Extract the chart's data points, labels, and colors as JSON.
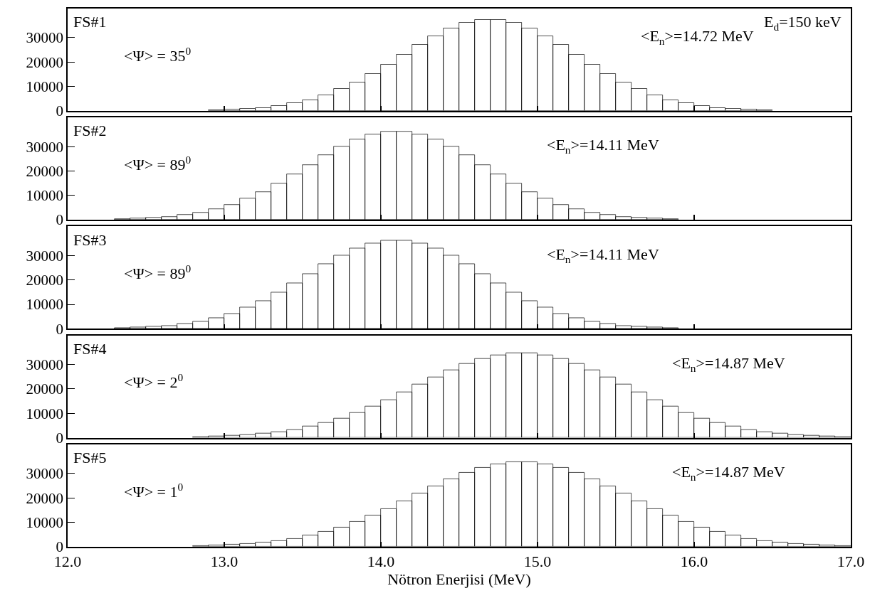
{
  "chart_data": [
    {
      "type": "histogram",
      "color": "#000000",
      "bins": [
        12.9,
        13.0,
        13.1,
        13.2,
        13.3,
        13.4,
        13.5,
        13.6,
        13.7,
        13.8,
        13.9,
        14.0,
        14.1,
        14.2,
        14.3,
        14.4,
        14.5,
        14.6,
        14.7,
        14.8,
        14.9,
        15.0,
        15.1,
        15.2,
        15.3,
        15.4,
        15.5,
        15.6,
        15.7,
        15.8,
        15.9,
        16.0,
        16.1,
        16.2,
        16.3,
        16.4,
        16.5
      ],
      "values": [
        300,
        500,
        800,
        1300,
        2100,
        3100,
        4500,
        6400,
        8900,
        11800,
        15300,
        19100,
        23100,
        27100,
        30700,
        33800,
        36100,
        37300,
        37300,
        36100,
        33800,
        30700,
        27100,
        23100,
        19100,
        15300,
        11800,
        8900,
        6400,
        4500,
        3100,
        2100,
        1300,
        800,
        500,
        300
      ],
      "annotations": [
        "FS#1",
        "<Ψ> = 35$^{0}$",
        "<E$_{n}$>=14.72 MeV",
        "E$_{d}$=150 keV"
      ],
      "xlim": [
        12.0,
        17.0
      ],
      "xticks": [
        {
          "value": 12.0,
          "label": null
        },
        {
          "value": 13.0,
          "label": null
        },
        {
          "value": 14.0,
          "label": null
        },
        {
          "value": 15.0,
          "label": null
        },
        {
          "value": 16.0,
          "label": null
        },
        {
          "value": 17.0,
          "label": null
        }
      ],
      "ylim": [
        0,
        42000
      ],
      "yticks": [
        0,
        10000,
        20000,
        30000
      ],
      "tick_labels": "y"
    },
    {
      "type": "histogram",
      "color": "#000000",
      "bins": [
        12.3,
        12.4,
        12.5,
        12.6,
        12.7,
        12.8,
        12.9,
        13.0,
        13.1,
        13.2,
        13.3,
        13.4,
        13.5,
        13.6,
        13.7,
        13.8,
        13.9,
        14.0,
        14.1,
        14.2,
        14.3,
        14.4,
        14.5,
        14.6,
        14.7,
        14.8,
        14.9,
        15.0,
        15.1,
        15.2,
        15.3,
        15.4,
        15.5,
        15.6,
        15.7,
        15.8,
        15.9
      ],
      "values": [
        300,
        500,
        800,
        1300,
        2000,
        3000,
        4400,
        6200,
        8700,
        11500,
        14900,
        18600,
        22500,
        26400,
        29900,
        32900,
        35100,
        36300,
        36300,
        35100,
        32900,
        29900,
        26400,
        22500,
        18600,
        14900,
        11500,
        8700,
        6200,
        4400,
        3000,
        2000,
        1300,
        800,
        500,
        300
      ],
      "annotations": [
        "FS#2",
        "<Ψ> = 89$^{0}$",
        "<E$_{n}$>=14.11 MeV"
      ],
      "xlim": [
        12.0,
        17.0
      ],
      "xticks": [
        {
          "value": 12.0,
          "label": null
        },
        {
          "value": 13.0,
          "label": null
        },
        {
          "value": 14.0,
          "label": null
        },
        {
          "value": 15.0,
          "label": null
        },
        {
          "value": 16.0,
          "label": null
        },
        {
          "value": 17.0,
          "label": null
        }
      ],
      "ylim": [
        0,
        42000
      ],
      "yticks": [
        0,
        10000,
        20000,
        30000
      ],
      "tick_labels": "y"
    },
    {
      "type": "histogram",
      "color": "#000000",
      "bins": [
        12.3,
        12.4,
        12.5,
        12.6,
        12.7,
        12.8,
        12.9,
        13.0,
        13.1,
        13.2,
        13.3,
        13.4,
        13.5,
        13.6,
        13.7,
        13.8,
        13.9,
        14.0,
        14.1,
        14.2,
        14.3,
        14.4,
        14.5,
        14.6,
        14.7,
        14.8,
        14.9,
        15.0,
        15.1,
        15.2,
        15.3,
        15.4,
        15.5,
        15.6,
        15.7,
        15.8,
        15.9
      ],
      "values": [
        300,
        500,
        800,
        1300,
        2000,
        3000,
        4400,
        6200,
        8700,
        11500,
        14900,
        18600,
        22500,
        26400,
        29900,
        32900,
        35100,
        36300,
        36300,
        35100,
        32900,
        29900,
        26400,
        22500,
        18600,
        14900,
        11500,
        8700,
        6200,
        4400,
        3000,
        2000,
        1300,
        800,
        500,
        300
      ],
      "annotations": [
        "FS#3",
        "<Ψ> = 89$^{0}$",
        "<E$_{n}$>=14.11 MeV"
      ],
      "xlim": [
        12.0,
        17.0
      ],
      "xticks": [
        {
          "value": 12.0,
          "label": null
        },
        {
          "value": 13.0,
          "label": null
        },
        {
          "value": 14.0,
          "label": null
        },
        {
          "value": 15.0,
          "label": null
        },
        {
          "value": 16.0,
          "label": null
        },
        {
          "value": 17.0,
          "label": null
        }
      ],
      "ylim": [
        0,
        42000
      ],
      "yticks": [
        0,
        10000,
        20000,
        30000
      ],
      "tick_labels": "y"
    },
    {
      "type": "histogram",
      "color": "#000000",
      "bins": [
        12.8,
        12.9,
        13.0,
        13.1,
        13.2,
        13.3,
        13.4,
        13.5,
        13.6,
        13.7,
        13.8,
        13.9,
        14.0,
        14.1,
        14.2,
        14.3,
        14.4,
        14.5,
        14.6,
        14.7,
        14.8,
        14.9,
        15.0,
        15.1,
        15.2,
        15.3,
        15.4,
        15.5,
        15.6,
        15.7,
        15.8,
        15.9,
        16.0,
        16.1,
        16.2,
        16.3,
        16.4,
        16.5,
        16.6,
        16.7,
        16.8,
        16.9,
        17.0
      ],
      "values": [
        300,
        500,
        800,
        1100,
        1700,
        2400,
        3300,
        4600,
        6100,
        8000,
        10200,
        12700,
        15600,
        18600,
        21800,
        24800,
        27800,
        30400,
        32500,
        33900,
        34700,
        34700,
        33900,
        32500,
        30400,
        27800,
        24800,
        21800,
        18600,
        15600,
        12700,
        10200,
        8000,
        6100,
        4600,
        3300,
        2400,
        1700,
        1100,
        800,
        500,
        300
      ],
      "annotations": [
        "FS#4",
        "<Ψ> = 2$^{0}$",
        "<E$_{n}$>=14.87 MeV"
      ],
      "xlim": [
        12.0,
        17.0
      ],
      "xticks": [
        {
          "value": 12.0,
          "label": null
        },
        {
          "value": 13.0,
          "label": null
        },
        {
          "value": 14.0,
          "label": null
        },
        {
          "value": 15.0,
          "label": null
        },
        {
          "value": 16.0,
          "label": null
        },
        {
          "value": 17.0,
          "label": null
        }
      ],
      "ylim": [
        0,
        42000
      ],
      "yticks": [
        0,
        10000,
        20000,
        30000
      ],
      "tick_labels": "y"
    },
    {
      "type": "histogram",
      "color": "#000000",
      "bins": [
        12.8,
        12.9,
        13.0,
        13.1,
        13.2,
        13.3,
        13.4,
        13.5,
        13.6,
        13.7,
        13.8,
        13.9,
        14.0,
        14.1,
        14.2,
        14.3,
        14.4,
        14.5,
        14.6,
        14.7,
        14.8,
        14.9,
        15.0,
        15.1,
        15.2,
        15.3,
        15.4,
        15.5,
        15.6,
        15.7,
        15.8,
        15.9,
        16.0,
        16.1,
        16.2,
        16.3,
        16.4,
        16.5,
        16.6,
        16.7,
        16.8,
        16.9,
        17.0
      ],
      "values": [
        300,
        500,
        800,
        1100,
        1700,
        2400,
        3300,
        4600,
        6100,
        8000,
        10200,
        12700,
        15600,
        18600,
        21800,
        24800,
        27800,
        30400,
        32500,
        33900,
        34700,
        34700,
        33900,
        32500,
        30400,
        27800,
        24800,
        21800,
        18600,
        15600,
        12700,
        10200,
        8000,
        6100,
        4600,
        3300,
        2400,
        1700,
        1100,
        800,
        500,
        300
      ],
      "annotations": [
        "FS#5",
        "<Ψ> = 1$^{0}$",
        "<E$_{n}$>=14.87 MeV"
      ],
      "xlabel": "Nötron Enerjisi (MeV)",
      "xlim": [
        12.0,
        17.0
      ],
      "xticks": [
        {
          "value": 12.0,
          "label": "12.0"
        },
        {
          "value": 13.0,
          "label": "13.0"
        },
        {
          "value": 14.0,
          "label": "14.0"
        },
        {
          "value": 15.0,
          "label": "15.0"
        },
        {
          "value": 16.0,
          "label": "16.0"
        },
        {
          "value": 17.0,
          "label": "17.0"
        }
      ],
      "ylim": [
        0,
        42000
      ],
      "yticks": [
        0,
        10000,
        20000,
        30000
      ]
    }
  ]
}
